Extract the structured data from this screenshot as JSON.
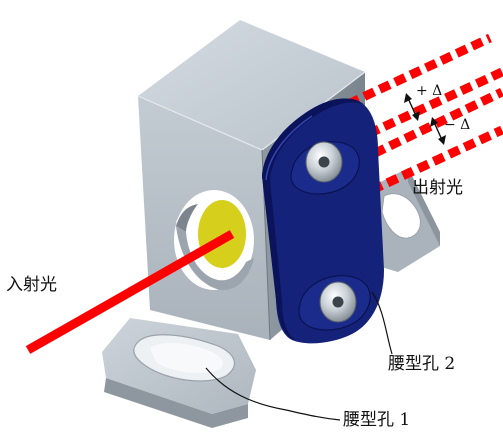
{
  "labels": {
    "incident_light": "入射光",
    "outgoing_light": "出射光",
    "slot_hole_2": "腰型孔 2",
    "slot_hole_1": "腰型孔 1",
    "plus_delta": "+ Δ",
    "minus_delta": "− Δ"
  },
  "colors": {
    "laser": "#ff0000",
    "plate": "#13237e",
    "mirror": "#d8d21a",
    "metal_light": "#c5cdd5",
    "metal_mid": "#a3acb4",
    "metal_dark": "#848d96"
  }
}
